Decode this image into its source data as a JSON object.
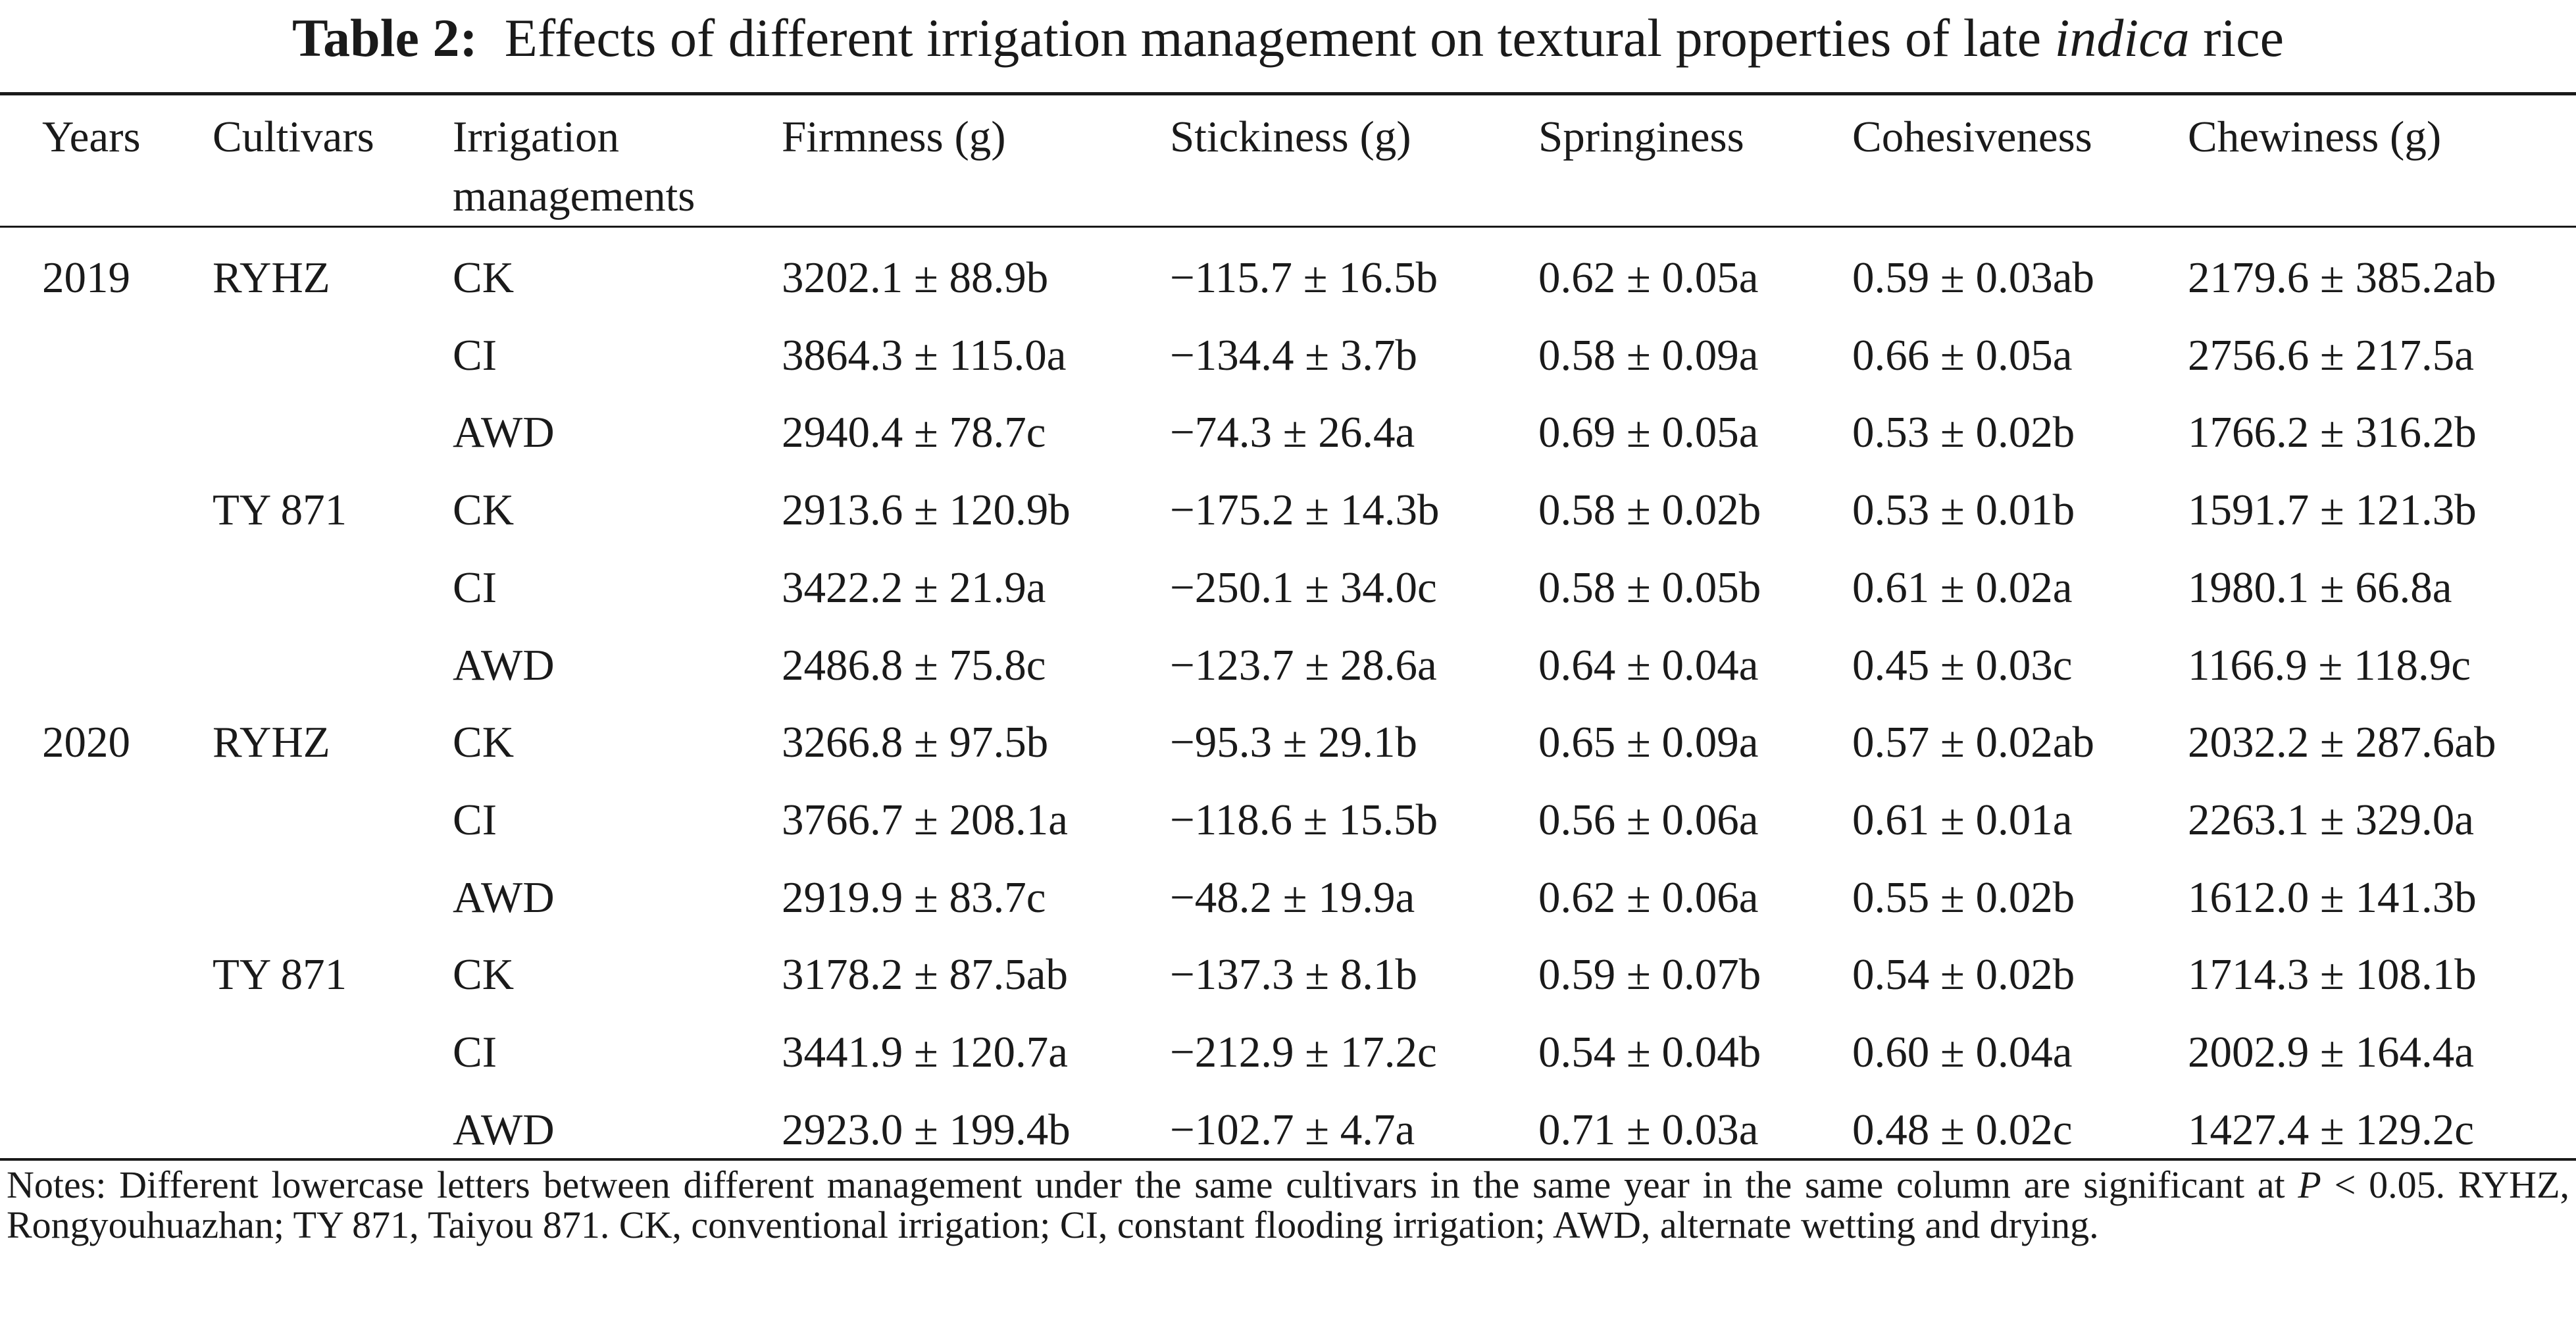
{
  "title": {
    "label": "Table 2:",
    "text_before": "Effects of different irrigation management on textural properties of late",
    "italic_word": "indica",
    "text_after": "rice"
  },
  "columns": {
    "years": "Years",
    "cultivars": "Cultivars",
    "irrigation_line1": "Irrigation",
    "irrigation_line2": "managements",
    "firmness": "Firmness (g)",
    "stickiness": "Stickiness (g)",
    "springiness": "Springiness",
    "cohesiveness": "Cohesiveness",
    "chewiness": "Chewiness (g)"
  },
  "rows": [
    {
      "year": "2019",
      "cultivar": "RYHZ",
      "irrigation": "CK",
      "firmness": "3202.1 ± 88.9b",
      "stickiness": "−115.7 ± 16.5b",
      "springiness": "0.62 ± 0.05a",
      "cohesiveness": "0.59 ± 0.03ab",
      "chewiness": "2179.6 ± 385.2ab"
    },
    {
      "year": "",
      "cultivar": "",
      "irrigation": "CI",
      "firmness": "3864.3 ± 115.0a",
      "stickiness": "−134.4 ± 3.7b",
      "springiness": "0.58 ± 0.09a",
      "cohesiveness": "0.66 ± 0.05a",
      "chewiness": "2756.6 ± 217.5a"
    },
    {
      "year": "",
      "cultivar": "",
      "irrigation": "AWD",
      "firmness": "2940.4 ± 78.7c",
      "stickiness": "−74.3 ± 26.4a",
      "springiness": "0.69 ± 0.05a",
      "cohesiveness": "0.53 ± 0.02b",
      "chewiness": "1766.2 ± 316.2b"
    },
    {
      "year": "",
      "cultivar": "TY 871",
      "irrigation": "CK",
      "firmness": "2913.6 ± 120.9b",
      "stickiness": "−175.2 ± 14.3b",
      "springiness": "0.58 ± 0.02b",
      "cohesiveness": "0.53 ± 0.01b",
      "chewiness": "1591.7 ± 121.3b"
    },
    {
      "year": "",
      "cultivar": "",
      "irrigation": "CI",
      "firmness": "3422.2 ± 21.9a",
      "stickiness": "−250.1 ± 34.0c",
      "springiness": "0.58 ± 0.05b",
      "cohesiveness": "0.61 ± 0.02a",
      "chewiness": "1980.1 ± 66.8a"
    },
    {
      "year": "",
      "cultivar": "",
      "irrigation": "AWD",
      "firmness": "2486.8 ± 75.8c",
      "stickiness": "−123.7 ± 28.6a",
      "springiness": "0.64 ± 0.04a",
      "cohesiveness": "0.45 ± 0.03c",
      "chewiness": "1166.9 ± 118.9c"
    },
    {
      "year": "2020",
      "cultivar": "RYHZ",
      "irrigation": "CK",
      "firmness": "3266.8 ± 97.5b",
      "stickiness": "−95.3 ± 29.1b",
      "springiness": "0.65 ± 0.09a",
      "cohesiveness": "0.57 ± 0.02ab",
      "chewiness": "2032.2 ± 287.6ab"
    },
    {
      "year": "",
      "cultivar": "",
      "irrigation": "CI",
      "firmness": "3766.7 ± 208.1a",
      "stickiness": "−118.6 ± 15.5b",
      "springiness": "0.56 ± 0.06a",
      "cohesiveness": "0.61 ± 0.01a",
      "chewiness": "2263.1 ± 329.0a"
    },
    {
      "year": "",
      "cultivar": "",
      "irrigation": "AWD",
      "firmness": "2919.9 ± 83.7c",
      "stickiness": "−48.2 ± 19.9a",
      "springiness": "0.62 ± 0.06a",
      "cohesiveness": "0.55 ± 0.02b",
      "chewiness": "1612.0 ± 141.3b"
    },
    {
      "year": "",
      "cultivar": "TY 871",
      "irrigation": "CK",
      "firmness": "3178.2 ± 87.5ab",
      "stickiness": "−137.3 ± 8.1b",
      "springiness": "0.59 ± 0.07b",
      "cohesiveness": "0.54 ± 0.02b",
      "chewiness": "1714.3 ± 108.1b"
    },
    {
      "year": "",
      "cultivar": "",
      "irrigation": "CI",
      "firmness": "3441.9 ± 120.7a",
      "stickiness": "−212.9 ± 17.2c",
      "springiness": "0.54 ± 0.04b",
      "cohesiveness": "0.60 ± 0.04a",
      "chewiness": "2002.9 ± 164.4a"
    },
    {
      "year": "",
      "cultivar": "",
      "irrigation": "AWD",
      "firmness": "2923.0 ± 199.4b",
      "stickiness": "−102.7 ± 4.7a",
      "springiness": "0.71 ± 0.03a",
      "cohesiveness": "0.48 ± 0.02c",
      "chewiness": "1427.4 ± 129.2c"
    }
  ],
  "notes": {
    "part1": "Notes: Different lowercase letters between different management under the same cultivars in the same year in the same column are significant at",
    "p_symbol": "P",
    "part2": "< 0.05. RYHZ, Rongyouhuazhan; TY 871, Taiyou 871. CK, conventional irrigation; CI, constant flooding irrigation; AWD, alternate wetting and drying."
  }
}
